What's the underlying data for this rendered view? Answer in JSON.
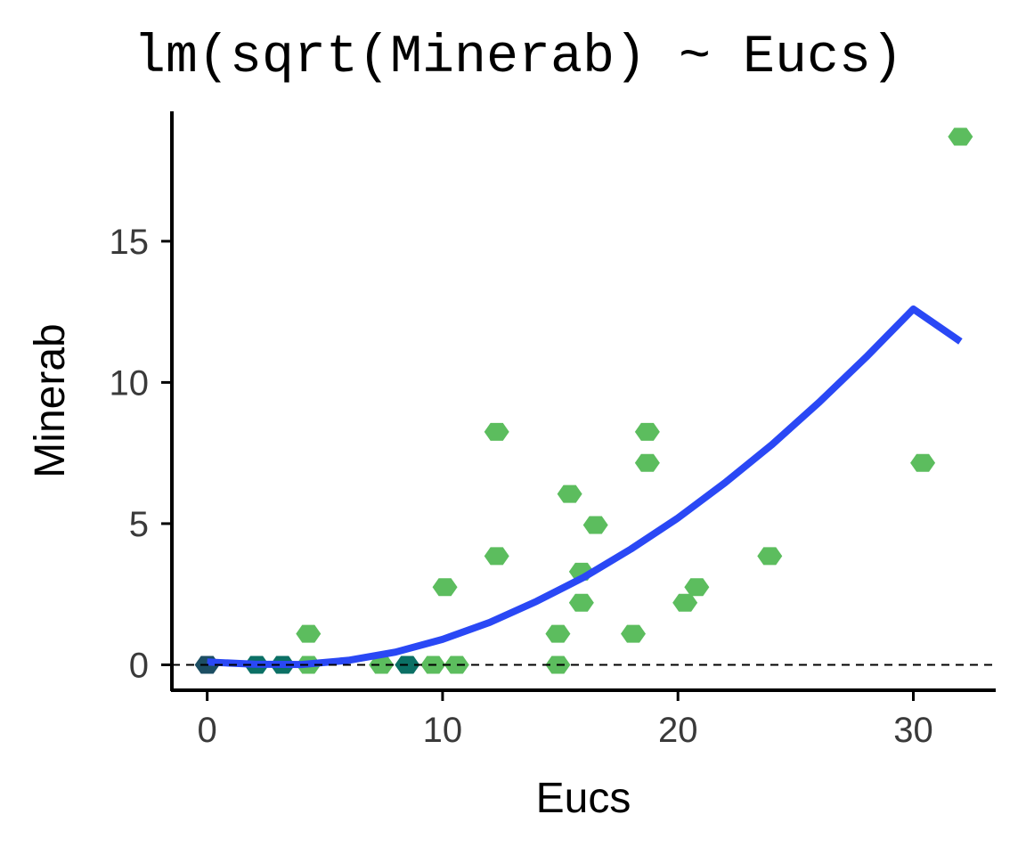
{
  "chart_data": {
    "type": "scatter",
    "title": "lm(sqrt(Minerab) ~ Eucs)",
    "xlabel": "Eucs",
    "ylabel": "Minerab",
    "xlim": [
      -1.5,
      33.5
    ],
    "ylim": [
      -0.9,
      19.6
    ],
    "xticks": [
      0,
      10,
      20,
      30
    ],
    "yticks": [
      0,
      5,
      10,
      15
    ],
    "reference_line": {
      "y": 0,
      "style": "dashed"
    },
    "grid": false,
    "legend": "none",
    "colors": {
      "hex_low": "#1c4e63",
      "hex_mid": "#0b7065",
      "hex_high": "#5cbd5e",
      "fit_line": "#2a48f5",
      "axis": "#000000"
    },
    "points": [
      {
        "x": 0.0,
        "y": 0.0,
        "level": "low"
      },
      {
        "x": 2.1,
        "y": 0.0,
        "level": "mid"
      },
      {
        "x": 3.2,
        "y": 0.0,
        "level": "mid"
      },
      {
        "x": 4.3,
        "y": 0.0,
        "level": "high"
      },
      {
        "x": 4.3,
        "y": 1.1,
        "level": "high"
      },
      {
        "x": 7.4,
        "y": 0.0,
        "level": "high"
      },
      {
        "x": 8.5,
        "y": 0.0,
        "level": "mid"
      },
      {
        "x": 9.6,
        "y": 0.0,
        "level": "high"
      },
      {
        "x": 10.6,
        "y": 0.0,
        "level": "high"
      },
      {
        "x": 10.1,
        "y": 2.75,
        "level": "high"
      },
      {
        "x": 12.3,
        "y": 8.25,
        "level": "high"
      },
      {
        "x": 12.3,
        "y": 3.85,
        "level": "high"
      },
      {
        "x": 14.9,
        "y": 0.0,
        "level": "high"
      },
      {
        "x": 14.9,
        "y": 1.1,
        "level": "high"
      },
      {
        "x": 15.4,
        "y": 6.05,
        "level": "high"
      },
      {
        "x": 15.9,
        "y": 3.3,
        "level": "high"
      },
      {
        "x": 15.9,
        "y": 2.2,
        "level": "high"
      },
      {
        "x": 16.5,
        "y": 4.95,
        "level": "high"
      },
      {
        "x": 18.1,
        "y": 1.1,
        "level": "high"
      },
      {
        "x": 18.7,
        "y": 8.25,
        "level": "high"
      },
      {
        "x": 18.7,
        "y": 7.15,
        "level": "high"
      },
      {
        "x": 20.3,
        "y": 2.2,
        "level": "high"
      },
      {
        "x": 20.8,
        "y": 2.75,
        "level": "high"
      },
      {
        "x": 23.9,
        "y": 3.85,
        "level": "high"
      },
      {
        "x": 30.4,
        "y": 7.15,
        "level": "high"
      },
      {
        "x": 32.0,
        "y": 18.7,
        "level": "high"
      }
    ],
    "fit": {
      "x": [
        0,
        2,
        4,
        6,
        8,
        10,
        12,
        14,
        16,
        18,
        20,
        22,
        24,
        26,
        28,
        30,
        32
      ],
      "y": [
        0.1,
        0.02,
        0.01,
        0.16,
        0.45,
        0.9,
        1.5,
        2.25,
        3.1,
        4.1,
        5.2,
        6.45,
        7.8,
        9.3,
        10.9,
        12.6,
        11.45
      ]
    }
  }
}
